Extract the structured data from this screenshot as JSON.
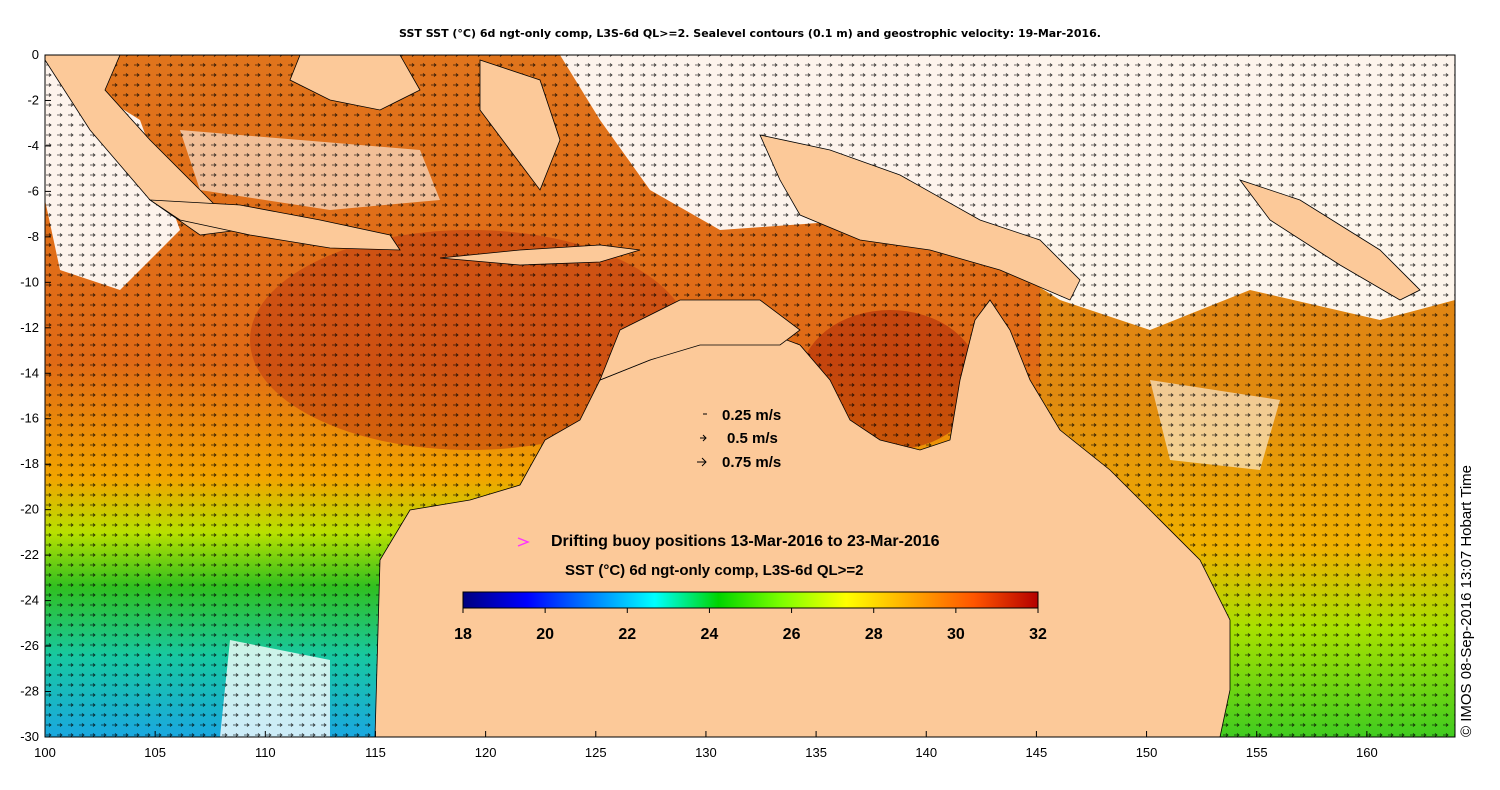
{
  "title": "SST SST (°C) 6d ngt-only comp, L3S-6d QL>=2. Sealevel contours (0.1 m) and geostrophic velocity: 19-Mar-2016.",
  "colors": {
    "land": "#fcc999",
    "cloud": "#ffffff",
    "buoy": "#ff33ff"
  },
  "map": {
    "lon_range": [
      100,
      164
    ],
    "lat_range": [
      -30,
      0
    ],
    "x_ticks": [
      "100",
      "105",
      "110",
      "115",
      "120",
      "125",
      "130",
      "135",
      "140",
      "145",
      "150",
      "155",
      "160"
    ],
    "y_ticks": [
      "0",
      "-2",
      "-4",
      "-6",
      "-8",
      "-10",
      "-12",
      "-14",
      "-16",
      "-18",
      "-20",
      "-22",
      "-24",
      "-26",
      "-28",
      "-30"
    ]
  },
  "velocity_key": [
    {
      "label": "0.25 m/s"
    },
    {
      "label": "0.5 m/s"
    },
    {
      "label": "0.75 m/s"
    }
  ],
  "buoy_legend": "Drifting buoy positions 13-Mar-2016 to 23-Mar-2016",
  "colorbar": {
    "title": "SST (°C) 6d ngt-only comp, L3S-6d QL>=2",
    "ticks": [
      "18",
      "20",
      "22",
      "24",
      "26",
      "28",
      "30",
      "32"
    ],
    "colors": [
      "#00007f",
      "#0000ff",
      "#0080ff",
      "#00ffff",
      "#00d400",
      "#7fff00",
      "#ffff00",
      "#ffaa00",
      "#ff5500",
      "#b40000"
    ]
  },
  "credit": "© IMOS 08-Sep-2016 13:07 Hobart Time"
}
